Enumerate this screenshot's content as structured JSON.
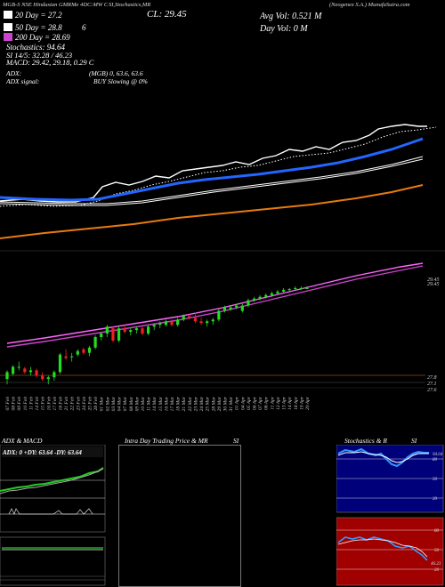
{
  "header": {
    "line1_left": "MGB-S NSE Hindustan GMRMe 4DC:MW Charts",
    "line1_mid": "SI,Stochastics,MR",
    "line1_company": "(Neogenex S.A.) MunafaSutra.com",
    "cl": "CL: 29.45",
    "avgvol": "Avg Vol: 0.521 M",
    "dayvol": "Day Vol: 0   M",
    "ema20": "20  Day = 27.2",
    "ema50": "50  Day = 28.8",
    "ema50_extra": "6",
    "ema200": "200  Day = 28.69",
    "stochastics": "Stochastics: 94.64",
    "si": "SI 14/5: 32.28 / 46.23",
    "macd": "MACD: 29.42,  29.18,  0.29 C",
    "adx": "ADX:",
    "adx_vals": "(MGB) 0,  63.6,  63.6",
    "adx_signal": "ADX  signal:",
    "buy": "BUY Slowing @ 0%"
  },
  "colors": {
    "bg": "#000000",
    "ma_blue": "#2266ff",
    "ma_orange": "#e87a12",
    "bb_magenta": "#cc44cc",
    "bull": "#22dd22",
    "bear": "#ee2222",
    "macd_green": "#22cc22",
    "stoch_blue": "#000080",
    "stoch_red": "#aa0000"
  },
  "price_labels": {
    "p1": "29.45",
    "p2": "29.45",
    "p3": "27.8",
    "p4": "27.1",
    "p5": "27.6"
  },
  "dates": [
    "07 Feb",
    "08 Feb",
    "09 Feb",
    "10 Feb",
    "11 Feb",
    "14 Feb",
    "15 Feb",
    "16 Feb",
    "17 Feb",
    "18 Feb",
    "21 Feb",
    "22 Feb",
    "23 Feb",
    "24 Feb",
    "25 Feb",
    "28 Feb",
    "01 Mar",
    "02 Mar",
    "03 Mar",
    "04 Mar",
    "07 Mar",
    "08 Mar",
    "09 Mar",
    "10 Mar",
    "11 Mar",
    "14 Mar",
    "15 Mar",
    "16 Mar",
    "17 Mar",
    "18 Mar",
    "21 Mar",
    "22 Mar",
    "23 Mar",
    "24 Mar",
    "25 Mar",
    "28 Mar",
    "29 Mar",
    "30 Mar",
    "31 Mar",
    "01 Apr",
    "04 Apr",
    "05 Apr",
    "06 Apr",
    "07 Apr",
    "08 Apr",
    "11 Apr",
    "12 Apr",
    "13 Apr",
    "14 Apr",
    "18 Apr",
    "19 Apr",
    "20 Apr"
  ],
  "bottom": {
    "adx_title": "ADX  & MACD",
    "adx_legend": "ADX: 0   +DY: 63.64   -DY: 63.64",
    "intra_title": "Intra  Day Trading Price  & MR",
    "intra_si": "SI",
    "stoch_title": "Stochastics & R",
    "stoch_si": "SI",
    "stoch_top_labels": [
      "80",
      "50",
      "20"
    ],
    "stoch_top_value": "94.64",
    "stoch_bottom_labels": [
      "80",
      "50",
      "20"
    ],
    "stoch_bottom_value": "46.23"
  },
  "chart_data": {
    "type": "candlestick",
    "x": [
      "07 Feb",
      "08 Feb",
      "09 Feb",
      "10 Feb",
      "11 Feb",
      "14 Feb",
      "15 Feb",
      "16 Feb",
      "17 Feb",
      "18 Feb",
      "21 Feb",
      "22 Feb",
      "23 Feb",
      "24 Feb",
      "25 Feb",
      "28 Feb",
      "01 Mar",
      "02 Mar",
      "03 Mar",
      "04 Mar",
      "07 Mar",
      "08 Mar",
      "09 Mar",
      "10 Mar",
      "11 Mar",
      "14 Mar",
      "15 Mar",
      "16 Mar",
      "17 Mar",
      "18 Mar",
      "21 Mar",
      "22 Mar",
      "23 Mar",
      "24 Mar",
      "25 Mar",
      "28 Mar",
      "29 Mar",
      "30 Mar",
      "31 Mar",
      "01 Apr",
      "04 Apr",
      "05 Apr",
      "06 Apr",
      "07 Apr",
      "08 Apr",
      "11 Apr",
      "12 Apr",
      "13 Apr",
      "14 Apr",
      "18 Apr",
      "19 Apr",
      "20 Apr"
    ],
    "candles": [
      [
        26.85,
        27.1,
        26.7,
        27.05
      ],
      [
        27.0,
        27.25,
        26.95,
        27.2
      ],
      [
        27.2,
        27.35,
        27.1,
        27.2
      ],
      [
        27.15,
        27.2,
        27.0,
        27.05
      ],
      [
        27.05,
        27.2,
        26.95,
        27.1
      ],
      [
        27.1,
        27.15,
        26.9,
        26.95
      ],
      [
        26.95,
        27.05,
        26.8,
        26.85
      ],
      [
        26.85,
        26.95,
        26.7,
        26.9
      ],
      [
        26.9,
        27.1,
        26.8,
        27.05
      ],
      [
        27.05,
        27.6,
        27.0,
        27.55
      ],
      [
        27.5,
        27.7,
        27.4,
        27.45
      ],
      [
        27.5,
        27.6,
        27.35,
        27.5
      ],
      [
        27.55,
        27.7,
        27.5,
        27.65
      ],
      [
        27.7,
        27.75,
        27.55,
        27.6
      ],
      [
        27.6,
        27.8,
        27.5,
        27.75
      ],
      [
        27.75,
        28.1,
        27.7,
        28.05
      ],
      [
        28.05,
        28.2,
        27.95,
        28.15
      ],
      [
        28.15,
        28.4,
        28.05,
        28.35
      ],
      [
        28.3,
        28.35,
        27.9,
        27.95
      ],
      [
        27.95,
        28.35,
        27.9,
        28.3
      ],
      [
        28.3,
        28.4,
        28.15,
        28.2
      ],
      [
        28.2,
        28.3,
        28.1,
        28.25
      ],
      [
        28.25,
        28.35,
        28.15,
        28.3
      ],
      [
        28.3,
        28.35,
        28.1,
        28.15
      ],
      [
        28.15,
        28.4,
        28.1,
        28.35
      ],
      [
        28.35,
        28.45,
        28.25,
        28.4
      ],
      [
        28.4,
        28.5,
        28.3,
        28.45
      ],
      [
        28.4,
        28.55,
        28.35,
        28.5
      ],
      [
        28.5,
        28.55,
        28.35,
        28.4
      ],
      [
        28.4,
        28.6,
        28.35,
        28.55
      ],
      [
        28.55,
        28.7,
        28.5,
        28.65
      ],
      [
        28.65,
        28.7,
        28.55,
        28.6
      ],
      [
        28.6,
        28.75,
        28.45,
        28.5
      ],
      [
        28.5,
        28.6,
        28.4,
        28.45
      ],
      [
        28.45,
        28.55,
        28.35,
        28.5
      ],
      [
        28.5,
        28.6,
        28.4,
        28.55
      ],
      [
        28.55,
        28.85,
        28.5,
        28.8
      ],
      [
        28.8,
        28.95,
        28.75,
        28.9
      ],
      [
        28.85,
        28.95,
        28.8,
        28.9
      ],
      [
        28.9,
        29.0,
        28.85,
        28.95
      ],
      [
        28.8,
        29.0,
        28.75,
        28.95
      ],
      [
        28.95,
        29.15,
        28.9,
        29.1
      ],
      [
        29.1,
        29.2,
        29.05,
        29.15
      ],
      [
        29.15,
        29.25,
        29.1,
        29.2
      ],
      [
        29.2,
        29.3,
        29.15,
        29.25
      ],
      [
        29.25,
        29.35,
        29.2,
        29.3
      ],
      [
        29.3,
        29.4,
        29.25,
        29.35
      ],
      [
        29.35,
        29.45,
        29.3,
        29.4
      ],
      [
        29.4,
        29.45,
        29.35,
        29.42
      ],
      [
        29.42,
        29.5,
        29.38,
        29.45
      ],
      [
        29.45,
        29.5,
        29.4,
        29.45
      ],
      [
        29.45,
        29.5,
        29.42,
        29.45
      ]
    ]
  }
}
